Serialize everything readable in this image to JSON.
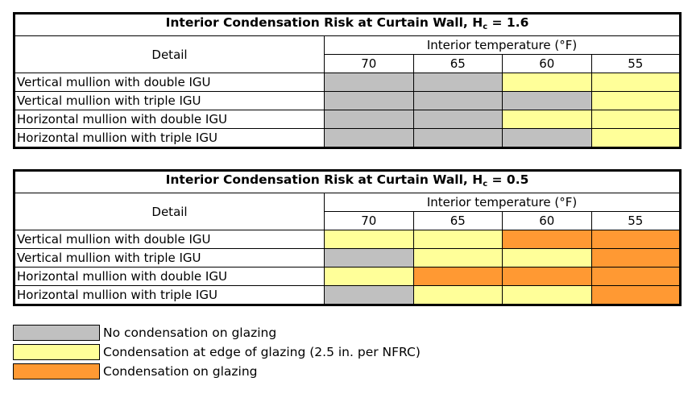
{
  "colors": {
    "no_condensation": "#c0c0c0",
    "edge_condensation": "#ffff99",
    "glazing_condensation": "#ff9933"
  },
  "tables": [
    {
      "title": "Interior Condensation Risk at Curtain Wall, H",
      "title_sub": "c",
      "title_value": " = 1.6",
      "detail_header": "Detail",
      "temp_header": "Interior temperature (°F)",
      "temps": [
        "70",
        "65",
        "60",
        "55"
      ],
      "rows": [
        {
          "label": "Vertical mullion with double IGU",
          "cells": [
            "none",
            "none",
            "edge",
            "edge"
          ]
        },
        {
          "label": "Vertical mullion with triple IGU",
          "cells": [
            "none",
            "none",
            "none",
            "edge"
          ]
        },
        {
          "label": "Horizontal mullion with double IGU",
          "cells": [
            "none",
            "none",
            "edge",
            "edge"
          ]
        },
        {
          "label": "Horizontal mullion with triple IGU",
          "cells": [
            "none",
            "none",
            "none",
            "edge"
          ]
        }
      ]
    },
    {
      "title": "Interior Condensation Risk at Curtain Wall, H",
      "title_sub": "c",
      "title_value": " = 0.5",
      "detail_header": "Detail",
      "temp_header": "Interior temperature (°F)",
      "temps": [
        "70",
        "65",
        "60",
        "55"
      ],
      "rows": [
        {
          "label": "Vertical mullion with double IGU",
          "cells": [
            "edge",
            "edge",
            "glazing",
            "glazing"
          ]
        },
        {
          "label": "Vertical mullion with triple IGU",
          "cells": [
            "none",
            "edge",
            "edge",
            "glazing"
          ]
        },
        {
          "label": "Horizontal mullion with double IGU",
          "cells": [
            "edge",
            "glazing",
            "glazing",
            "glazing"
          ]
        },
        {
          "label": "Horizontal mullion with triple IGU",
          "cells": [
            "none",
            "edge",
            "edge",
            "glazing"
          ]
        }
      ]
    }
  ],
  "legend": [
    {
      "key": "none",
      "label": "No condensation on glazing"
    },
    {
      "key": "edge",
      "label": "Condensation at edge of glazing (2.5 in. per NFRC)"
    },
    {
      "key": "glazing",
      "label": "Condensation on glazing"
    }
  ]
}
